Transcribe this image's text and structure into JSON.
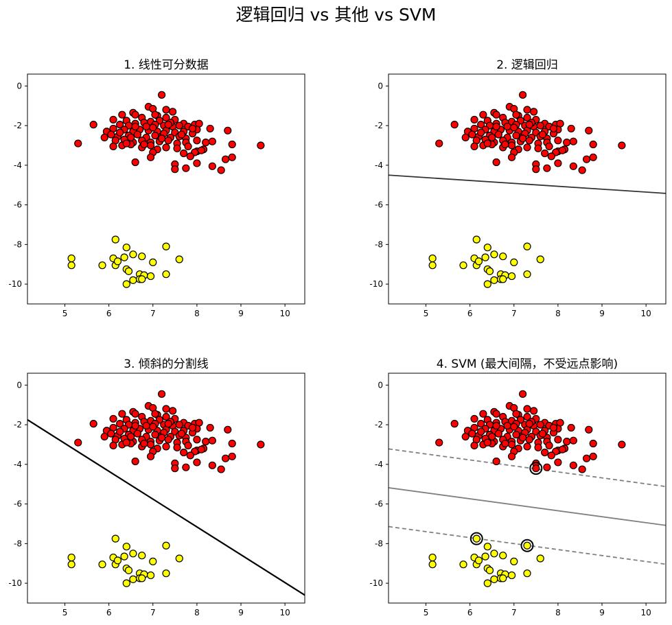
{
  "figure": {
    "title": "逻辑回归 vs 其他 vs SVM",
    "colors": {
      "class_a_fill": "#ff0000",
      "class_b_fill": "#ffff00",
      "marker_edge": "#000000",
      "logistic_line": "#333333",
      "tilted_line": "#000000",
      "svm_line": "#808080"
    }
  },
  "chart_data": [
    {
      "type": "scatter",
      "title": "1. 线性可分数据",
      "xlim": [
        4.15,
        10.45
      ],
      "ylim": [
        -11.0,
        0.6
      ],
      "xticks": [
        5,
        6,
        7,
        8,
        9,
        10
      ],
      "yticks": [
        0,
        -2,
        -4,
        -6,
        -8,
        -10
      ],
      "grid": false,
      "lines": []
    },
    {
      "type": "scatter",
      "title": "2. 逻辑回归",
      "xlim": [
        4.15,
        10.45
      ],
      "ylim": [
        -11.0,
        0.6
      ],
      "xticks": [
        5,
        6,
        7,
        8,
        9,
        10
      ],
      "yticks": [
        0,
        -2,
        -4,
        -6,
        -8,
        -10
      ],
      "grid": false,
      "lines": [
        {
          "points": [
            [
              4.15,
              -4.5
            ],
            [
              10.45,
              -5.42
            ]
          ],
          "style": "solid",
          "color": "#333333"
        }
      ]
    },
    {
      "type": "scatter",
      "title": "3. 倾斜的分割线",
      "xlim": [
        4.15,
        10.45
      ],
      "ylim": [
        -11.0,
        0.6
      ],
      "xticks": [
        5,
        6,
        7,
        8,
        9,
        10
      ],
      "yticks": [
        0,
        -2,
        -4,
        -6,
        -8,
        -10
      ],
      "grid": false,
      "lines": [
        {
          "points": [
            [
              4.15,
              -1.75
            ],
            [
              10.45,
              -10.6
            ]
          ],
          "style": "solid",
          "color": "#000000"
        }
      ]
    },
    {
      "type": "scatter",
      "title": "4. SVM (最大间隔，不受远点影响)",
      "xlim": [
        4.15,
        10.45
      ],
      "ylim": [
        -11.0,
        0.6
      ],
      "xticks": [
        5,
        6,
        7,
        8,
        9,
        10
      ],
      "yticks": [
        0,
        -2,
        -4,
        -6,
        -8,
        -10
      ],
      "grid": false,
      "lines": [
        {
          "points": [
            [
              4.15,
              -5.18
            ],
            [
              10.45,
              -7.08
            ]
          ],
          "style": "solid",
          "color": "#808080"
        },
        {
          "points": [
            [
              4.15,
              -3.22
            ],
            [
              10.45,
              -5.12
            ]
          ],
          "style": "dashed",
          "color": "#808080"
        },
        {
          "points": [
            [
              4.15,
              -7.14
            ],
            [
              10.45,
              -9.04
            ]
          ],
          "style": "dashed",
          "color": "#808080"
        }
      ],
      "support_vectors": [
        [
          7.5,
          -4.2
        ],
        [
          6.15,
          -7.75
        ],
        [
          7.3,
          -8.1
        ]
      ]
    }
  ],
  "data_points": {
    "class_a": [
      [
        7.2,
        -0.45
      ],
      [
        6.9,
        -1.05
      ],
      [
        7.0,
        -1.15
      ],
      [
        6.55,
        -1.35
      ],
      [
        7.3,
        -1.2
      ],
      [
        7.45,
        -1.3
      ],
      [
        6.6,
        -1.45
      ],
      [
        7.1,
        -1.5
      ],
      [
        6.3,
        -1.45
      ],
      [
        7.3,
        -1.6
      ],
      [
        6.75,
        -1.6
      ],
      [
        5.65,
        -1.95
      ],
      [
        6.1,
        -1.7
      ],
      [
        6.4,
        -1.75
      ],
      [
        6.95,
        -1.8
      ],
      [
        7.15,
        -1.75
      ],
      [
        7.5,
        -1.7
      ],
      [
        7.7,
        -1.9
      ],
      [
        7.95,
        -1.95
      ],
      [
        8.05,
        -1.9
      ],
      [
        6.25,
        -1.95
      ],
      [
        6.45,
        -2.0
      ],
      [
        6.6,
        -1.9
      ],
      [
        6.8,
        -1.85
      ],
      [
        7.05,
        -1.95
      ],
      [
        7.25,
        -2.0
      ],
      [
        7.45,
        -2.05
      ],
      [
        7.6,
        -2.0
      ],
      [
        7.8,
        -2.05
      ],
      [
        8.0,
        -2.2
      ],
      [
        8.3,
        -2.15
      ],
      [
        8.7,
        -2.25
      ],
      [
        5.95,
        -2.3
      ],
      [
        6.1,
        -2.15
      ],
      [
        6.35,
        -2.2
      ],
      [
        6.55,
        -2.3
      ],
      [
        6.7,
        -2.2
      ],
      [
        6.9,
        -2.25
      ],
      [
        7.1,
        -2.3
      ],
      [
        7.3,
        -2.25
      ],
      [
        7.5,
        -2.35
      ],
      [
        7.7,
        -2.3
      ],
      [
        7.9,
        -2.4
      ],
      [
        6.05,
        -2.45
      ],
      [
        6.2,
        -2.55
      ],
      [
        6.45,
        -2.5
      ],
      [
        6.65,
        -2.45
      ],
      [
        6.85,
        -2.6
      ],
      [
        7.05,
        -2.5
      ],
      [
        7.2,
        -2.55
      ],
      [
        7.4,
        -2.6
      ],
      [
        7.6,
        -2.55
      ],
      [
        7.75,
        -2.65
      ],
      [
        5.9,
        -2.6
      ],
      [
        6.15,
        -2.75
      ],
      [
        6.35,
        -2.7
      ],
      [
        6.55,
        -2.85
      ],
      [
        6.75,
        -2.75
      ],
      [
        6.95,
        -2.85
      ],
      [
        7.15,
        -2.8
      ],
      [
        7.35,
        -2.75
      ],
      [
        7.55,
        -2.9
      ],
      [
        7.75,
        -2.85
      ],
      [
        8.0,
        -2.75
      ],
      [
        8.2,
        -2.85
      ],
      [
        8.35,
        -2.8
      ],
      [
        6.1,
        -3.05
      ],
      [
        6.3,
        -3.0
      ],
      [
        6.5,
        -2.95
      ],
      [
        6.75,
        -3.1
      ],
      [
        6.95,
        -3.0
      ],
      [
        7.1,
        -3.2
      ],
      [
        7.3,
        -3.1
      ],
      [
        7.55,
        -3.15
      ],
      [
        7.8,
        -3.05
      ],
      [
        8.0,
        -3.3
      ],
      [
        8.15,
        -3.2
      ],
      [
        5.3,
        -2.9
      ],
      [
        8.8,
        -2.95
      ],
      [
        9.45,
        -3.0
      ],
      [
        7.0,
        -3.35
      ],
      [
        7.7,
        -3.4
      ],
      [
        7.95,
        -3.35
      ],
      [
        8.1,
        -3.25
      ],
      [
        6.95,
        -3.6
      ],
      [
        7.85,
        -3.55
      ],
      [
        8.65,
        -3.7
      ],
      [
        8.8,
        -3.6
      ],
      [
        6.6,
        -3.85
      ],
      [
        8.0,
        -3.9
      ],
      [
        7.5,
        -3.95
      ],
      [
        8.35,
        -4.05
      ],
      [
        7.75,
        -4.15
      ],
      [
        7.5,
        -4.2
      ],
      [
        8.55,
        -4.25
      ],
      [
        7.0,
        -2.1
      ],
      [
        6.85,
        -2.05
      ],
      [
        7.4,
        -1.85
      ],
      [
        6.5,
        -2.6
      ],
      [
        7.25,
        -2.4
      ],
      [
        6.6,
        -2.05
      ],
      [
        7.65,
        -2.45
      ],
      [
        6.25,
        -2.35
      ],
      [
        7.05,
        -1.45
      ],
      [
        7.35,
        -1.95
      ],
      [
        6.8,
        -2.95
      ],
      [
        7.9,
        -2.15
      ],
      [
        6.4,
        -2.9
      ],
      [
        7.2,
        -2.65
      ]
    ],
    "class_b": [
      [
        6.15,
        -7.75
      ],
      [
        7.3,
        -8.1
      ],
      [
        6.4,
        -8.15
      ],
      [
        6.55,
        -8.5
      ],
      [
        6.75,
        -8.6
      ],
      [
        6.1,
        -8.7
      ],
      [
        6.35,
        -8.65
      ],
      [
        7.0,
        -8.9
      ],
      [
        7.6,
        -8.75
      ],
      [
        5.15,
        -8.7
      ],
      [
        5.15,
        -9.05
      ],
      [
        5.85,
        -9.05
      ],
      [
        6.15,
        -9.05
      ],
      [
        6.2,
        -8.85
      ],
      [
        6.4,
        -9.25
      ],
      [
        6.45,
        -9.35
      ],
      [
        7.3,
        -9.5
      ],
      [
        6.7,
        -9.5
      ],
      [
        6.8,
        -9.55
      ],
      [
        6.55,
        -9.8
      ],
      [
        6.7,
        -9.75
      ],
      [
        6.95,
        -9.6
      ],
      [
        6.75,
        -9.75
      ],
      [
        6.4,
        -10.0
      ]
    ]
  }
}
